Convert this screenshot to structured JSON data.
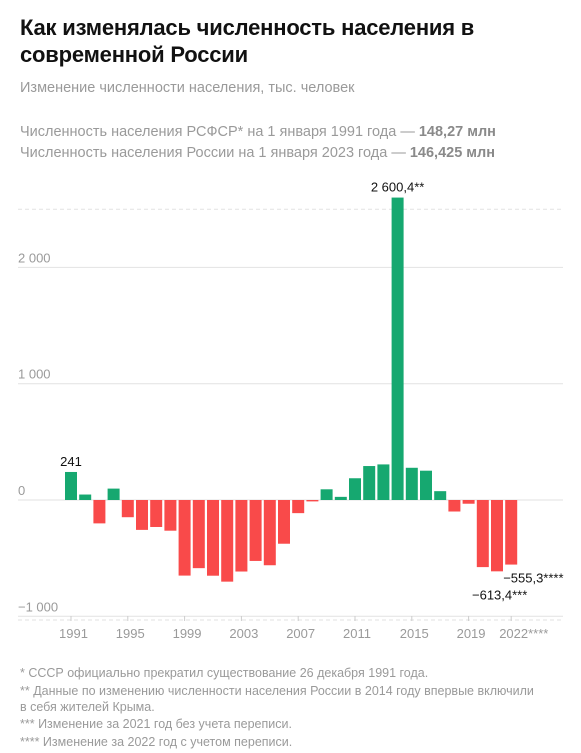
{
  "title": "Как изменялась численность населения в современной России",
  "subtitle": "Изменение численности населения, тыс. человек",
  "info": [
    {
      "text": "Численность населения РСФСР* на 1 января 1991 года — ",
      "value": "148,27 млн"
    },
    {
      "text": "Численность населения России на 1 января 2023 года — ",
      "value": "146,425 млн"
    }
  ],
  "footnotes": [
    "* СССР официально прекратил существование 26 декабря 1991 года.",
    "** Данные по изменению численности населения России в 2014 году впервые включили в себя жителей Крыма.",
    "*** Изменение за 2021 год без учета переписи.",
    "**** Изменение за 2022 год с учетом переписи."
  ],
  "colors": {
    "positive": "#16a870",
    "negative": "#f94a4a",
    "grid": "#e2e2e2",
    "axis_text": "#9a9a9a"
  },
  "chart_data": {
    "type": "bar",
    "categories": [
      "1991",
      "1992",
      "1993",
      "1994",
      "1995",
      "1996",
      "1997",
      "1998",
      "1999",
      "2000",
      "2001",
      "2002",
      "2003",
      "2004",
      "2005",
      "2006",
      "2007",
      "2008",
      "2009",
      "2010",
      "2011",
      "2012",
      "2013",
      "2014",
      "2015",
      "2016",
      "2017",
      "2018",
      "2019",
      "2020",
      "2021",
      "2022"
    ],
    "values": [
      241,
      47,
      -201,
      98,
      -148,
      -257,
      -232,
      -264,
      -650,
      -586,
      -651,
      -702,
      -615,
      -524,
      -561,
      -376,
      -113,
      -12,
      92,
      27,
      187,
      292,
      306,
      2600.4,
      277,
      252,
      76,
      -99,
      -32,
      -577,
      -613.4,
      -555.3
    ],
    "x_tick_labels": [
      "1991",
      "1995",
      "1999",
      "2003",
      "2007",
      "2011",
      "2015",
      "2019",
      "2022****"
    ],
    "y_tick_labels": [
      "−1 000",
      "0",
      "1 000",
      "2 000"
    ],
    "ylim": [
      -1000,
      2600
    ],
    "data_labels": [
      {
        "category": "1991",
        "text": "241"
      },
      {
        "category": "2014",
        "text": "2 600,4**"
      },
      {
        "category": "2021",
        "text": "−613,4***"
      },
      {
        "category": "2022",
        "text": "−555,3****"
      }
    ],
    "grid": true
  }
}
